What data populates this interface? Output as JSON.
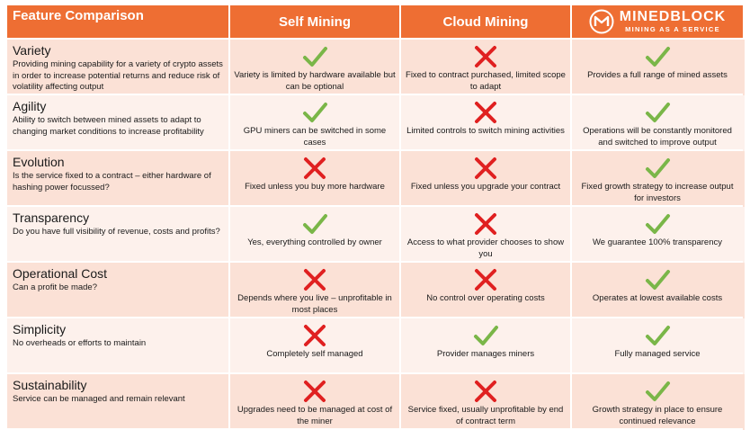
{
  "header": {
    "feature_label": "Feature Comparison",
    "col1": "Self Mining",
    "col2": "Cloud Mining",
    "logo_name": "MINEDBLOCK",
    "logo_tagline": "MINING AS A SERVICE"
  },
  "colors": {
    "header": "#ee6e33",
    "check": "#7ab648",
    "cross": "#e02020",
    "row_dark": "#fbe1d6",
    "row_light": "#fdf1ec"
  },
  "rows": [
    {
      "title": "Variety",
      "desc": "Providing mining capability for a variety of crypto assets in order to increase potential returns and reduce risk of volatility affecting output",
      "cells": [
        {
          "mark": "check",
          "text": "Variety is limited by hardware available but can be optional"
        },
        {
          "mark": "cross",
          "text": "Fixed to contract purchased, limited scope to adapt"
        },
        {
          "mark": "check",
          "text": "Provides a full range of mined assets"
        }
      ]
    },
    {
      "title": "Agility",
      "desc": "Ability to switch between mined assets to adapt to changing market conditions to increase profitability",
      "cells": [
        {
          "mark": "check",
          "text": "GPU miners can be switched in some cases"
        },
        {
          "mark": "cross",
          "text": "Limited controls to switch mining activities"
        },
        {
          "mark": "check",
          "text": "Operations will be constantly monitored and switched to improve output"
        }
      ]
    },
    {
      "title": "Evolution",
      "desc": "Is the service fixed to a contract – either hardware of hashing power focussed?",
      "cells": [
        {
          "mark": "cross",
          "text": "Fixed unless you buy more hardware"
        },
        {
          "mark": "cross",
          "text": "Fixed unless you upgrade your contract"
        },
        {
          "mark": "check",
          "text": "Fixed growth strategy to increase output for investors"
        }
      ]
    },
    {
      "title": "Transparency",
      "desc": "Do you have full visibility of revenue, costs and profits?",
      "cells": [
        {
          "mark": "check",
          "text": "Yes, everything controlled by owner"
        },
        {
          "mark": "cross",
          "text": "Access to what provider chooses to show you"
        },
        {
          "mark": "check",
          "text": "We guarantee 100% transparency"
        }
      ]
    },
    {
      "title": "Operational Cost",
      "desc": "Can a profit be made?",
      "cells": [
        {
          "mark": "cross",
          "text": "Depends where you live – unprofitable in most places"
        },
        {
          "mark": "cross",
          "text": "No control over operating costs"
        },
        {
          "mark": "check",
          "text": "Operates at lowest available costs"
        }
      ]
    },
    {
      "title": "Simplicity",
      "desc": "No overheads or efforts to maintain",
      "cells": [
        {
          "mark": "cross",
          "text": "Completely self managed"
        },
        {
          "mark": "check",
          "text": "Provider manages miners"
        },
        {
          "mark": "check",
          "text": "Fully managed service"
        }
      ]
    },
    {
      "title": "Sustainability",
      "desc": "Service can be managed and remain relevant",
      "cells": [
        {
          "mark": "cross",
          "text": "Upgrades need to be managed at cost of the miner"
        },
        {
          "mark": "cross",
          "text": "Service fixed, usually unprofitable by end of contract term"
        },
        {
          "mark": "check",
          "text": "Growth strategy in place to ensure continued relevance"
        }
      ]
    }
  ]
}
